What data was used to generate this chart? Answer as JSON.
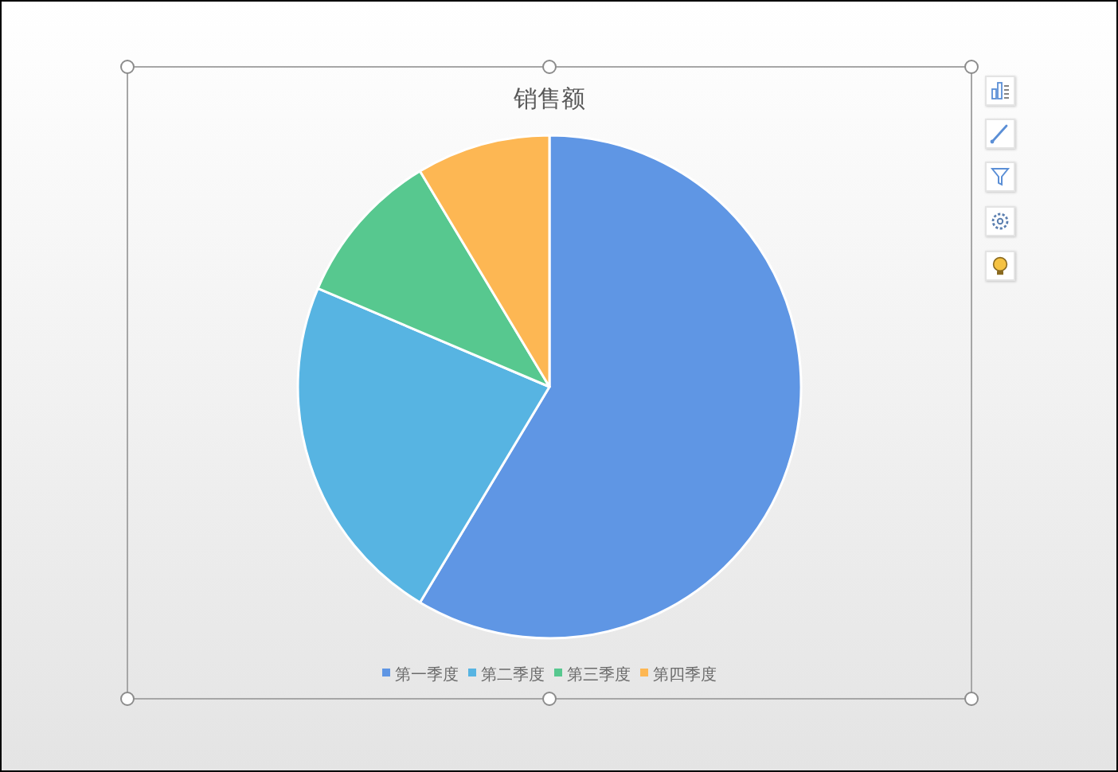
{
  "chart_data": {
    "type": "pie",
    "title": "销售额",
    "categories": [
      "第一季度",
      "第二季度",
      "第三季度",
      "第四季度"
    ],
    "values": [
      58.6,
      22.8,
      10.0,
      8.6
    ],
    "colors": [
      "#5f96e4",
      "#57b4e2",
      "#57c88f",
      "#fdb753"
    ],
    "legend": "bottom"
  }
}
